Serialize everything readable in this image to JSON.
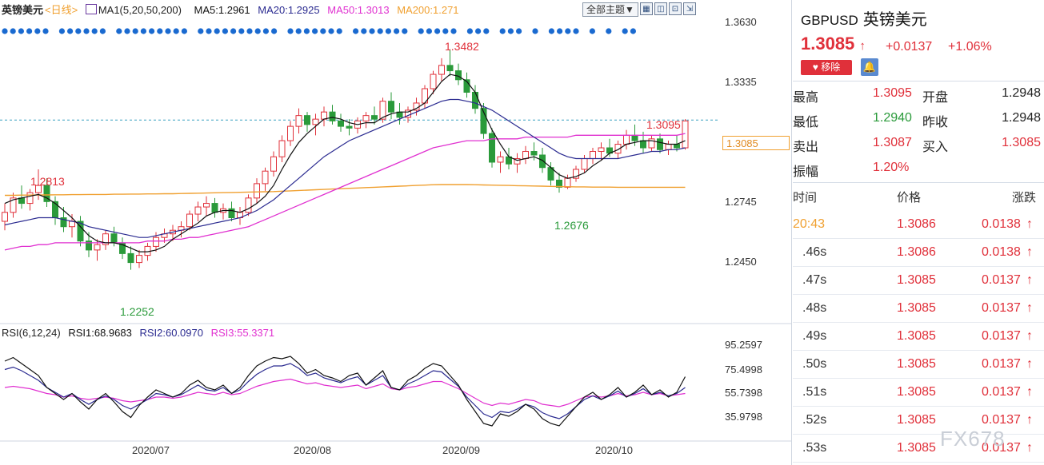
{
  "chart_legend": {
    "symbol": "英镑美元",
    "period": "<日线>",
    "indicator": "MA1(5,20,50,200)",
    "ma5": "MA5:1.2961",
    "ma20": "MA20:1.2925",
    "ma50": "MA50:1.3013",
    "ma200": "MA200:1.271"
  },
  "toolbar": {
    "theme_label": "全部主题▼",
    "icons": [
      "grid-icon",
      "split-icon",
      "expand-icon",
      "fullscreen-icon"
    ]
  },
  "colors": {
    "up": "#e0303a",
    "down": "#2a9a3a",
    "ma5": "#111111",
    "ma20": "#2a2a90",
    "ma50": "#e030d0",
    "ma200": "#f0a030",
    "dots": "#1a6ad0"
  },
  "price_axis": [
    "1.3630",
    "1.3335",
    "1.3085",
    "1.2745",
    "1.2450"
  ],
  "current_price_label": "1.3085",
  "annotations": {
    "high_peak": "1.3482",
    "left_high": "1.2813",
    "low": "1.2252",
    "recent_high": "1.3095",
    "sep_low": "1.2676"
  },
  "rsi_legend": {
    "name": "RSI(6,12,24)",
    "rsi1": "RSI1:68.9683",
    "rsi2": "RSI2:60.0970",
    "rsi3": "RSI3:55.3371"
  },
  "rsi_axis": [
    "95.2597",
    "75.4998",
    "55.7398",
    "35.9798"
  ],
  "dates": [
    "2020/07",
    "2020/08",
    "2020/09",
    "2020/10"
  ],
  "chart_data": {
    "type": "candlestick",
    "price_range": [
      1.215,
      1.363
    ],
    "rsi_range": [
      20,
      100
    ],
    "candles": [
      [
        1.252,
        1.262,
        1.247,
        1.257
      ],
      [
        1.257,
        1.268,
        1.254,
        1.265
      ],
      [
        1.265,
        1.272,
        1.259,
        1.262
      ],
      [
        1.262,
        1.27,
        1.258,
        1.268
      ],
      [
        1.268,
        1.281,
        1.264,
        1.272
      ],
      [
        1.272,
        1.276,
        1.26,
        1.263
      ],
      [
        1.263,
        1.266,
        1.25,
        1.254
      ],
      [
        1.254,
        1.26,
        1.246,
        1.249
      ],
      [
        1.249,
        1.256,
        1.243,
        1.252
      ],
      [
        1.252,
        1.255,
        1.238,
        1.241
      ],
      [
        1.241,
        1.246,
        1.232,
        1.236
      ],
      [
        1.236,
        1.242,
        1.23,
        1.239
      ],
      [
        1.239,
        1.247,
        1.236,
        1.245
      ],
      [
        1.245,
        1.249,
        1.238,
        1.24
      ],
      [
        1.24,
        1.243,
        1.231,
        1.234
      ],
      [
        1.234,
        1.238,
        1.225,
        1.229
      ],
      [
        1.229,
        1.236,
        1.226,
        1.233
      ],
      [
        1.233,
        1.24,
        1.23,
        1.238
      ],
      [
        1.238,
        1.246,
        1.235,
        1.243
      ],
      [
        1.243,
        1.248,
        1.24,
        1.245
      ],
      [
        1.245,
        1.25,
        1.241,
        1.247
      ],
      [
        1.247,
        1.252,
        1.243,
        1.249
      ],
      [
        1.249,
        1.258,
        1.247,
        1.256
      ],
      [
        1.256,
        1.263,
        1.252,
        1.26
      ],
      [
        1.26,
        1.266,
        1.255,
        1.262
      ],
      [
        1.262,
        1.265,
        1.254,
        1.257
      ],
      [
        1.257,
        1.262,
        1.253,
        1.259
      ],
      [
        1.259,
        1.263,
        1.252,
        1.254
      ],
      [
        1.254,
        1.26,
        1.25,
        1.257
      ],
      [
        1.257,
        1.267,
        1.255,
        1.265
      ],
      [
        1.265,
        1.276,
        1.262,
        1.273
      ],
      [
        1.273,
        1.282,
        1.269,
        1.28
      ],
      [
        1.28,
        1.291,
        1.277,
        1.288
      ],
      [
        1.288,
        1.3,
        1.285,
        1.297
      ],
      [
        1.297,
        1.308,
        1.294,
        1.305
      ],
      [
        1.305,
        1.315,
        1.301,
        1.311
      ],
      [
        1.311,
        1.313,
        1.302,
        1.306
      ],
      [
        1.306,
        1.312,
        1.3,
        1.309
      ],
      [
        1.309,
        1.316,
        1.305,
        1.313
      ],
      [
        1.313,
        1.317,
        1.306,
        1.308
      ],
      [
        1.308,
        1.312,
        1.302,
        1.305
      ],
      [
        1.305,
        1.309,
        1.3,
        1.304
      ],
      [
        1.304,
        1.31,
        1.301,
        1.308
      ],
      [
        1.308,
        1.313,
        1.304,
        1.311
      ],
      [
        1.311,
        1.316,
        1.306,
        1.309
      ],
      [
        1.309,
        1.321,
        1.307,
        1.319
      ],
      [
        1.319,
        1.324,
        1.309,
        1.313
      ],
      [
        1.313,
        1.318,
        1.306,
        1.31
      ],
      [
        1.31,
        1.316,
        1.307,
        1.314
      ],
      [
        1.314,
        1.321,
        1.311,
        1.318
      ],
      [
        1.318,
        1.328,
        1.315,
        1.326
      ],
      [
        1.326,
        1.336,
        1.323,
        1.334
      ],
      [
        1.334,
        1.343,
        1.33,
        1.339
      ],
      [
        1.339,
        1.348,
        1.333,
        1.336
      ],
      [
        1.336,
        1.34,
        1.328,
        1.331
      ],
      [
        1.331,
        1.335,
        1.321,
        1.324
      ],
      [
        1.324,
        1.328,
        1.312,
        1.315
      ],
      [
        1.315,
        1.318,
        1.298,
        1.301
      ],
      [
        1.301,
        1.304,
        1.282,
        1.285
      ],
      [
        1.285,
        1.291,
        1.279,
        1.288
      ],
      [
        1.288,
        1.293,
        1.281,
        1.284
      ],
      [
        1.284,
        1.29,
        1.279,
        1.287
      ],
      [
        1.287,
        1.294,
        1.284,
        1.291
      ],
      [
        1.291,
        1.296,
        1.286,
        1.289
      ],
      [
        1.289,
        1.293,
        1.279,
        1.282
      ],
      [
        1.282,
        1.285,
        1.272,
        1.275
      ],
      [
        1.275,
        1.279,
        1.268,
        1.271
      ],
      [
        1.271,
        1.278,
        1.27,
        1.276
      ],
      [
        1.276,
        1.283,
        1.274,
        1.281
      ],
      [
        1.281,
        1.289,
        1.279,
        1.287
      ],
      [
        1.287,
        1.293,
        1.284,
        1.291
      ],
      [
        1.291,
        1.296,
        1.286,
        1.293
      ],
      [
        1.293,
        1.298,
        1.288,
        1.29
      ],
      [
        1.29,
        1.297,
        1.287,
        1.295
      ],
      [
        1.295,
        1.303,
        1.292,
        1.3
      ],
      [
        1.3,
        1.306,
        1.294,
        1.297
      ],
      [
        1.297,
        1.302,
        1.29,
        1.293
      ],
      [
        1.293,
        1.3,
        1.291,
        1.298
      ],
      [
        1.298,
        1.301,
        1.29,
        1.292
      ],
      [
        1.292,
        1.297,
        1.289,
        1.295
      ],
      [
        1.295,
        1.3,
        1.291,
        1.293
      ],
      [
        1.293,
        1.309,
        1.292,
        1.308
      ]
    ],
    "ma5": [
      1.262,
      1.264,
      1.265,
      1.266,
      1.267,
      1.265,
      1.262,
      1.258,
      1.254,
      1.249,
      1.244,
      1.241,
      1.24,
      1.24,
      1.239,
      1.237,
      1.235,
      1.235,
      1.236,
      1.238,
      1.242,
      1.245,
      1.248,
      1.251,
      1.255,
      1.257,
      1.258,
      1.258,
      1.257,
      1.259,
      1.262,
      1.266,
      1.272,
      1.281,
      1.289,
      1.296,
      1.301,
      1.305,
      1.309,
      1.31,
      1.309,
      1.307,
      1.306,
      1.307,
      1.307,
      1.31,
      1.312,
      1.313,
      1.313,
      1.315,
      1.318,
      1.324,
      1.33,
      1.334,
      1.333,
      1.33,
      1.324,
      1.313,
      1.303,
      1.295,
      1.288,
      1.286,
      1.287,
      1.288,
      1.286,
      1.282,
      1.278,
      1.276,
      1.277,
      1.279,
      1.283,
      1.286,
      1.29,
      1.292,
      1.295,
      1.296,
      1.297,
      1.297,
      1.296,
      1.295,
      1.295,
      1.297
    ],
    "ma20": [
      1.25,
      1.251,
      1.252,
      1.253,
      1.254,
      1.254,
      1.254,
      1.253,
      1.252,
      1.251,
      1.249,
      1.248,
      1.247,
      1.246,
      1.245,
      1.244,
      1.243,
      1.243,
      1.244,
      1.245,
      1.246,
      1.247,
      1.248,
      1.249,
      1.25,
      1.251,
      1.252,
      1.253,
      1.254,
      1.256,
      1.258,
      1.261,
      1.264,
      1.268,
      1.272,
      1.276,
      1.28,
      1.284,
      1.288,
      1.291,
      1.294,
      1.297,
      1.299,
      1.301,
      1.303,
      1.305,
      1.307,
      1.309,
      1.311,
      1.313,
      1.315,
      1.317,
      1.319,
      1.32,
      1.32,
      1.319,
      1.318,
      1.316,
      1.314,
      1.311,
      1.308,
      1.305,
      1.302,
      1.299,
      1.296,
      1.293,
      1.29,
      1.288,
      1.287,
      1.287,
      1.287,
      1.287,
      1.287,
      1.287,
      1.288,
      1.289,
      1.29,
      1.291,
      1.291,
      1.292,
      1.292,
      1.293
    ],
    "ma50": [
      1.236,
      1.237,
      1.238,
      1.238,
      1.239,
      1.239,
      1.24,
      1.24,
      1.24,
      1.24,
      1.24,
      1.24,
      1.24,
      1.24,
      1.24,
      1.24,
      1.24,
      1.241,
      1.241,
      1.241,
      1.242,
      1.242,
      1.243,
      1.243,
      1.244,
      1.245,
      1.246,
      1.247,
      1.248,
      1.249,
      1.251,
      1.253,
      1.255,
      1.257,
      1.259,
      1.261,
      1.263,
      1.265,
      1.267,
      1.269,
      1.271,
      1.273,
      1.275,
      1.277,
      1.279,
      1.281,
      1.283,
      1.285,
      1.287,
      1.289,
      1.291,
      1.293,
      1.294,
      1.295,
      1.296,
      1.297,
      1.297,
      1.297,
      1.298,
      1.298,
      1.298,
      1.298,
      1.299,
      1.299,
      1.299,
      1.299,
      1.299,
      1.299,
      1.3,
      1.3,
      1.3,
      1.3,
      1.3,
      1.3,
      1.3,
      1.3,
      1.3,
      1.3,
      1.3,
      1.3,
      1.3,
      1.301
    ],
    "ma200": [
      1.2665,
      1.2665,
      1.2666,
      1.2666,
      1.2667,
      1.2667,
      1.2668,
      1.2668,
      1.2669,
      1.2669,
      1.267,
      1.267,
      1.267,
      1.2671,
      1.2671,
      1.2672,
      1.2672,
      1.2673,
      1.2673,
      1.2674,
      1.2674,
      1.2675,
      1.2676,
      1.2677,
      1.2678,
      1.2679,
      1.268,
      1.2681,
      1.2682,
      1.2683,
      1.2684,
      1.2685,
      1.2686,
      1.2688,
      1.269,
      1.2692,
      1.2694,
      1.2696,
      1.2698,
      1.27,
      1.2702,
      1.2704,
      1.2706,
      1.2708,
      1.271,
      1.2712,
      1.2714,
      1.2716,
      1.2718,
      1.272,
      1.2722,
      1.2724,
      1.2725,
      1.2725,
      1.2725,
      1.2725,
      1.2724,
      1.2723,
      1.2722,
      1.2721,
      1.272,
      1.2719,
      1.2718,
      1.2717,
      1.2716,
      1.2715,
      1.2714,
      1.2713,
      1.2712,
      1.2712,
      1.2711,
      1.2711,
      1.2711,
      1.271,
      1.271,
      1.271,
      1.271,
      1.271,
      1.271,
      1.271,
      1.271,
      1.271
    ],
    "rsi1": [
      82,
      85,
      80,
      75,
      70,
      60,
      55,
      50,
      55,
      48,
      42,
      50,
      55,
      48,
      40,
      35,
      45,
      52,
      58,
      55,
      52,
      55,
      62,
      66,
      60,
      58,
      62,
      55,
      60,
      70,
      78,
      82,
      85,
      84,
      86,
      80,
      72,
      75,
      70,
      68,
      65,
      70,
      72,
      62,
      68,
      74,
      60,
      58,
      66,
      70,
      76,
      80,
      78,
      70,
      62,
      50,
      40,
      30,
      28,
      38,
      36,
      40,
      46,
      42,
      34,
      30,
      28,
      36,
      44,
      52,
      56,
      50,
      54,
      60,
      52,
      56,
      62,
      54,
      58,
      52,
      56,
      69
    ],
    "rsi2": [
      75,
      77,
      74,
      70,
      66,
      60,
      56,
      52,
      55,
      50,
      46,
      50,
      53,
      50,
      45,
      42,
      46,
      50,
      55,
      54,
      52,
      54,
      58,
      62,
      58,
      57,
      60,
      55,
      58,
      65,
      71,
      75,
      78,
      78,
      80,
      76,
      70,
      72,
      68,
      66,
      64,
      67,
      69,
      62,
      66,
      70,
      60,
      58,
      63,
      66,
      70,
      74,
      73,
      67,
      61,
      52,
      45,
      38,
      35,
      40,
      39,
      42,
      46,
      44,
      39,
      36,
      34,
      38,
      44,
      50,
      53,
      50,
      53,
      57,
      52,
      55,
      59,
      54,
      56,
      53,
      55,
      60
    ],
    "rsi3": [
      60,
      61,
      60,
      59,
      57,
      55,
      54,
      52,
      53,
      51,
      50,
      51,
      52,
      51,
      49,
      48,
      49,
      50,
      52,
      52,
      51,
      52,
      54,
      56,
      55,
      54,
      56,
      54,
      55,
      58,
      61,
      63,
      65,
      66,
      67,
      65,
      63,
      64,
      62,
      61,
      60,
      61,
      62,
      59,
      61,
      63,
      59,
      58,
      60,
      61,
      63,
      65,
      65,
      62,
      59,
      55,
      51,
      47,
      45,
      47,
      46,
      48,
      50,
      49,
      46,
      45,
      44,
      46,
      49,
      52,
      53,
      52,
      53,
      55,
      53,
      54,
      56,
      54,
      55,
      53,
      54,
      55
    ]
  },
  "panel": {
    "code": "GBPUSD",
    "name": "英镑美元",
    "price": "1.3085",
    "up_arrow": "↑",
    "change": "+0.0137",
    "change_pct": "+1.06%",
    "remove_label": "移除",
    "bell_icon": "🔔",
    "stats": [
      {
        "l1": "最高",
        "v1": "1.3095",
        "c1": "#e0303a",
        "l2": "开盘",
        "v2": "1.2948",
        "c2": "#222222"
      },
      {
        "l1": "最低",
        "v1": "1.2940",
        "c1": "#2a9a3a",
        "l2": "昨收",
        "v2": "1.2948",
        "c2": "#222222"
      },
      {
        "l1": "卖出",
        "v1": "1.3087",
        "c1": "#e0303a",
        "l2": "买入",
        "v2": "1.3085",
        "c2": "#e0303a"
      },
      {
        "l1": "振幅",
        "v1": "1.20%",
        "c1": "#e0303a",
        "l2": "",
        "v2": "",
        "c2": "#222222"
      }
    ],
    "tick_headers": {
      "time": "时间",
      "price": "价格",
      "change": "涨跌"
    },
    "ticks": [
      {
        "time": "20:43",
        "price": "1.3086",
        "change": "0.0138",
        "highlight": true
      },
      {
        "time": ".46s",
        "price": "1.3086",
        "change": "0.0138",
        "highlight": false
      },
      {
        "time": ".47s",
        "price": "1.3085",
        "change": "0.0137",
        "highlight": false
      },
      {
        "time": ".48s",
        "price": "1.3085",
        "change": "0.0137",
        "highlight": false
      },
      {
        "time": ".49s",
        "price": "1.3085",
        "change": "0.0137",
        "highlight": false
      },
      {
        "time": ".50s",
        "price": "1.3085",
        "change": "0.0137",
        "highlight": false
      },
      {
        "time": ".51s",
        "price": "1.3085",
        "change": "0.0137",
        "highlight": false
      },
      {
        "time": ".52s",
        "price": "1.3085",
        "change": "0.0137",
        "highlight": false
      },
      {
        "time": ".53s",
        "price": "1.3085",
        "change": "0.0137",
        "highlight": false
      }
    ],
    "watermark": "FX678"
  }
}
